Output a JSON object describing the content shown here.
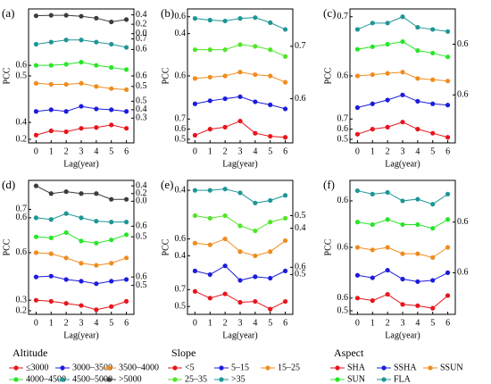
{
  "chart_data": [
    {
      "type": "line",
      "title": "(a)",
      "xlabel": "Lag(year)",
      "ylabel": "PCC",
      "x": [
        0,
        1,
        2,
        3,
        4,
        5,
        6
      ],
      "xlim": [
        -0.5,
        6.5
      ],
      "xticks": [
        0,
        1,
        2,
        3,
        4,
        5,
        6
      ],
      "series": [
        {
          "name": "≤3000",
          "color": "#e8141c",
          "values": [
            0.25,
            0.3,
            0.29,
            0.33,
            0.34,
            0.37,
            0.33
          ],
          "ylim": [
            0.2,
            0.45
          ],
          "yticks": [
            0.2,
            0.4
          ],
          "axis_side": "left"
        },
        {
          "name": "3000–3500",
          "color": "#1c1cdc",
          "values": [
            0.38,
            0.4,
            0.38,
            0.44,
            0.41,
            0.4,
            0.38
          ],
          "ylim": [
            0.3,
            0.55
          ],
          "yticks": [
            0.3,
            0.4,
            0.5
          ],
          "axis_side": "right"
        },
        {
          "name": "3500–4000",
          "color": "#f08c1e",
          "values": [
            0.53,
            0.52,
            0.52,
            0.53,
            0.5,
            0.48,
            0.47
          ],
          "ylim": [
            0.4,
            0.6
          ],
          "yticks": [
            0.5,
            0.6
          ],
          "axis_side": "right"
        },
        {
          "name": "4000–4500",
          "color": "#28e628",
          "values": [
            0.6,
            0.6,
            0.61,
            0.63,
            0.6,
            0.58,
            0.56
          ],
          "ylim": [
            0.5,
            0.7
          ],
          "yticks": [
            0.5,
            0.6
          ],
          "axis_side": "left"
        },
        {
          "name": "4500–5000",
          "color": "#1e9696",
          "values": [
            0.65,
            0.67,
            0.69,
            0.69,
            0.67,
            0.65,
            0.62
          ],
          "ylim": [
            0.55,
            0.75
          ],
          "yticks": [
            0.6,
            0.7
          ],
          "axis_side": "right"
        },
        {
          "name": ">5000",
          "color": "#3c3c3c",
          "values": [
            0.38,
            0.39,
            0.39,
            0.37,
            0.33,
            0.25,
            0.3
          ],
          "ylim": [
            0,
            0.45
          ],
          "yticks": [
            {
              "value": 0,
              "label": "0.0"
            },
            0.2,
            0.4
          ],
          "axis_side": "right"
        }
      ]
    },
    {
      "type": "line",
      "title": "(b)",
      "xlabel": "Lag(year)",
      "ylabel": "PCC",
      "x": [
        0,
        1,
        2,
        3,
        4,
        5,
        6
      ],
      "xlim": [
        -0.5,
        6.5
      ],
      "xticks": [
        0,
        1,
        2,
        3,
        4,
        5,
        6
      ],
      "series": [
        {
          "name": "<5",
          "color": "#e8141c",
          "values": [
            0.54,
            0.6,
            0.62,
            0.68,
            0.56,
            0.53,
            0.52
          ],
          "ylim": [
            0.5,
            0.75
          ],
          "yticks": [
            0.5,
            0.6,
            0.7
          ],
          "axis_side": "left"
        },
        {
          "name": "5–15",
          "color": "#1c1cdc",
          "values": [
            0.55,
            0.58,
            0.6,
            0.62,
            0.57,
            0.54,
            0.5
          ],
          "ylim": [
            0.45,
            0.7
          ],
          "yticks": [
            0.6
          ],
          "axis_side": "right"
        },
        {
          "name": "15–25",
          "color": "#f08c1e",
          "values": [
            0.58,
            0.59,
            0.6,
            0.63,
            0.61,
            0.6,
            0.55
          ],
          "ylim": [
            0.5,
            0.7
          ],
          "yticks": [
            0.6
          ],
          "axis_side": "left"
        },
        {
          "name": "25–35",
          "color": "#50e628",
          "values": [
            0.68,
            0.68,
            0.68,
            0.71,
            0.7,
            0.68,
            0.64
          ],
          "ylim": [
            0.6,
            0.75
          ],
          "yticks": [
            0.7
          ],
          "axis_side": "right"
        },
        {
          "name": ">35",
          "color": "#1e9696",
          "values": [
            0.58,
            0.56,
            0.55,
            0.58,
            0.59,
            0.53,
            0.45
          ],
          "ylim": [
            0.35,
            0.65
          ],
          "yticks": [
            0.4,
            0.6
          ],
          "axis_side": "left"
        }
      ]
    },
    {
      "type": "line",
      "title": "(c)",
      "xlabel": "Lag(year)",
      "ylabel": "PCC",
      "x": [
        0,
        1,
        2,
        3,
        4,
        5,
        6
      ],
      "xlim": [
        -0.5,
        6.5
      ],
      "xticks": [
        0,
        1,
        2,
        3,
        4,
        5,
        6
      ],
      "series": [
        {
          "name": "SHA",
          "color": "#e8141c",
          "values": [
            0.55,
            0.6,
            0.62,
            0.67,
            0.6,
            0.56,
            0.52
          ],
          "ylim": [
            0.5,
            0.75
          ],
          "yticks": [
            0.5,
            0.6,
            0.7
          ],
          "axis_side": "left"
        },
        {
          "name": "SSHA",
          "color": "#1c1cdc",
          "values": [
            0.5,
            0.53,
            0.56,
            0.6,
            0.55,
            0.53,
            0.52
          ],
          "ylim": [
            0.45,
            0.65
          ],
          "yticks": [
            0.6
          ],
          "axis_side": "right"
        },
        {
          "name": "SSUN",
          "color": "#f08c1e",
          "values": [
            0.6,
            0.61,
            0.62,
            0.63,
            0.58,
            0.57,
            0.56
          ],
          "ylim": [
            0.5,
            0.7
          ],
          "yticks": [
            0.6
          ],
          "axis_side": "left"
        },
        {
          "name": "SUN",
          "color": "#28e628",
          "values": [
            0.56,
            0.58,
            0.6,
            0.62,
            0.55,
            0.53,
            0.5
          ],
          "ylim": [
            0.45,
            0.65
          ],
          "yticks": [
            0.6
          ],
          "axis_side": "right"
        },
        {
          "name": "FLA",
          "color": "#1e9696",
          "values": [
            0.64,
            0.67,
            0.67,
            0.7,
            0.65,
            0.64,
            0.63
          ],
          "ylim": [
            0.6,
            0.72
          ],
          "yticks": [
            0.7
          ],
          "axis_side": "left"
        }
      ]
    },
    {
      "type": "line",
      "title": "(d)",
      "xlabel": "Lag(year)",
      "ylabel": "PCC",
      "legend_title": "Altitude",
      "x": [
        0,
        1,
        2,
        3,
        4,
        5,
        6
      ],
      "xlim": [
        -0.5,
        6.5
      ],
      "xticks": [
        0,
        1,
        2,
        3,
        4,
        5,
        6
      ],
      "series": [
        {
          "name": "≤3000",
          "color": "#e8141c",
          "values": [
            0.3,
            0.29,
            0.27,
            0.25,
            0.21,
            0.24,
            0.29
          ],
          "ylim": [
            0.2,
            0.4
          ],
          "yticks": [
            0.2,
            0.3
          ],
          "axis_side": "left"
        },
        {
          "name": "3000–3500",
          "color": "#1c1cdc",
          "values": [
            0.6,
            0.61,
            0.57,
            0.55,
            0.52,
            0.55,
            0.57
          ],
          "ylim": [
            0.45,
            0.7
          ],
          "yticks": [
            0.5,
            0.6
          ],
          "axis_side": "right"
        },
        {
          "name": "3500–4000",
          "color": "#f08c1e",
          "values": [
            0.6,
            0.59,
            0.55,
            0.5,
            0.48,
            0.5,
            0.55
          ],
          "ylim": [
            0.45,
            0.65
          ],
          "yticks": [
            0.6
          ],
          "axis_side": "left"
        },
        {
          "name": "4000–4500",
          "color": "#28e628",
          "values": [
            0.5,
            0.49,
            0.54,
            0.46,
            0.44,
            0.47,
            0.52
          ],
          "ylim": [
            0.4,
            0.6
          ],
          "yticks": [
            0.5,
            0.6
          ],
          "axis_side": "right"
        },
        {
          "name": "4500–5000",
          "color": "#1e9696",
          "values": [
            0.6,
            0.58,
            0.65,
            0.6,
            0.56,
            0.55,
            0.55
          ],
          "ylim": [
            0.5,
            0.75
          ],
          "yticks": [
            0.6,
            0.7
          ],
          "axis_side": "left"
        },
        {
          "name": ">5000",
          "color": "#3c3c3c",
          "values": [
            0.4,
            0.2,
            0.25,
            0.2,
            0.2,
            0.05,
            0.05
          ],
          "ylim": [
            -0.1,
            0.45
          ],
          "yticks": [
            {
              "value": 0,
              "label": "0.0"
            },
            0.2,
            0.4
          ],
          "axis_side": "right"
        }
      ]
    },
    {
      "type": "line",
      "title": "(e)",
      "xlabel": "Lag(year)",
      "ylabel": "PCC",
      "legend_title": "Slope",
      "x": [
        0,
        1,
        2,
        3,
        4,
        5,
        6
      ],
      "xlim": [
        -0.5,
        6.5
      ],
      "xticks": [
        0,
        1,
        2,
        3,
        4,
        5,
        6
      ],
      "series": [
        {
          "name": "<5",
          "color": "#e8141c",
          "values": [
            0.68,
            0.6,
            0.65,
            0.55,
            0.56,
            0.47,
            0.56
          ],
          "ylim": [
            0.45,
            0.75
          ],
          "yticks": [
            0.5,
            0.7
          ],
          "axis_side": "left"
        },
        {
          "name": "5–15",
          "color": "#1c1cdc",
          "values": [
            0.55,
            0.5,
            0.62,
            0.42,
            0.47,
            0.45,
            0.55
          ],
          "ylim": [
            0.35,
            0.7
          ],
          "yticks": [
            0.5,
            0.6
          ],
          "axis_side": "right"
        },
        {
          "name": "15–25",
          "color": "#f08c1e",
          "values": [
            0.55,
            0.53,
            0.6,
            0.45,
            0.4,
            0.45,
            0.58
          ],
          "ylim": [
            0.35,
            0.65
          ],
          "yticks": [
            0.4,
            0.6
          ],
          "axis_side": "left"
        },
        {
          "name": "25–35",
          "color": "#50e628",
          "values": [
            0.5,
            0.48,
            0.5,
            0.42,
            0.38,
            0.45,
            0.48
          ],
          "ylim": [
            0.35,
            0.55
          ],
          "yticks": [
            0.4,
            0.5
          ],
          "axis_side": "right"
        },
        {
          "name": ">35",
          "color": "#1e9696",
          "values": [
            0.4,
            0.4,
            0.41,
            0.38,
            0.3,
            0.32,
            0.36
          ],
          "ylim": [
            0.25,
            0.45
          ],
          "yticks": [
            0.4
          ],
          "axis_side": "left"
        }
      ]
    },
    {
      "type": "line",
      "title": "(f)",
      "xlabel": "Lag(year)",
      "ylabel": "PCC",
      "legend_title": "Aspect",
      "x": [
        0,
        1,
        2,
        3,
        4,
        5,
        6
      ],
      "xlim": [
        -0.5,
        6.5
      ],
      "xticks": [
        0,
        1,
        2,
        3,
        4,
        5,
        6
      ],
      "series": [
        {
          "name": "SHA",
          "color": "#e8141c",
          "values": [
            0.6,
            0.58,
            0.63,
            0.55,
            0.54,
            0.52,
            0.62
          ],
          "ylim": [
            0.5,
            0.7
          ],
          "yticks": [
            0.5,
            0.6
          ],
          "axis_side": "left"
        },
        {
          "name": "SSHA",
          "color": "#1c1cdc",
          "values": [
            0.58,
            0.56,
            0.62,
            0.55,
            0.53,
            0.54,
            0.6
          ],
          "ylim": [
            0.5,
            0.7
          ],
          "yticks": [
            0.6
          ],
          "axis_side": "right"
        },
        {
          "name": "SSUN",
          "color": "#f08c1e",
          "values": [
            0.6,
            0.58,
            0.6,
            0.55,
            0.55,
            0.52,
            0.6
          ],
          "ylim": [
            0.5,
            0.7
          ],
          "yticks": [
            0.6
          ],
          "axis_side": "left"
        },
        {
          "name": "SUN",
          "color": "#28e628",
          "values": [
            0.6,
            0.58,
            0.62,
            0.58,
            0.58,
            0.55,
            0.62
          ],
          "ylim": [
            0.5,
            0.7
          ],
          "yticks": [
            0.6
          ],
          "axis_side": "right"
        },
        {
          "name": "FLA",
          "color": "#1e9696",
          "values": [
            0.66,
            0.64,
            0.65,
            0.6,
            0.61,
            0.58,
            0.64
          ],
          "ylim": [
            0.55,
            0.7
          ],
          "yticks": [
            0.6
          ],
          "axis_side": "left"
        }
      ]
    }
  ]
}
